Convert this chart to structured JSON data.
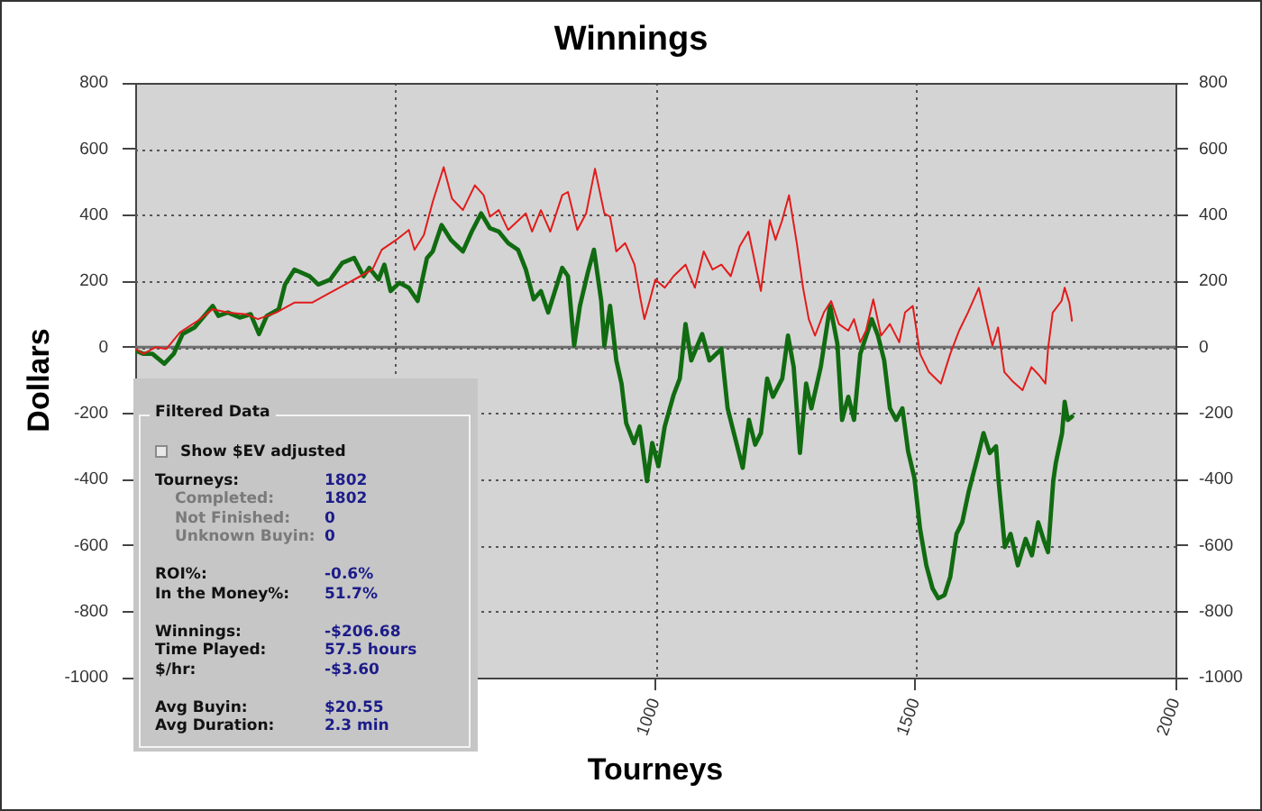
{
  "chart_data": [
    {
      "type": "line",
      "title": "Winnings",
      "xlabel": "Tourneys",
      "ylabel": "Dollars",
      "xlim": [
        0,
        2000
      ],
      "xticks": [
        {
          "value": 500,
          "label": null
        },
        1000,
        1500,
        2000
      ],
      "ylim": [
        -1000,
        800
      ],
      "yticks": [
        -1000,
        -800,
        -600,
        -400,
        -200,
        0,
        200,
        400,
        600,
        800
      ],
      "y2lim": [
        -1000,
        800
      ],
      "y2ticks": [
        -1000,
        -800,
        -600,
        -400,
        -200,
        0,
        200,
        400,
        600,
        800
      ],
      "grid": true,
      "legend": false,
      "ref_lines": [
        {
          "axis": "y",
          "value": 0,
          "color": "#6e6e6e"
        }
      ],
      "series": [
        {
          "color": "#e31b1b",
          "x": [
            0,
            16,
            39,
            60,
            86,
            120,
            149,
            178,
            213,
            236,
            271,
            306,
            340,
            369,
            404,
            433,
            456,
            474,
            502,
            526,
            537,
            555,
            572,
            593,
            609,
            630,
            653,
            670,
            682,
            699,
            717,
            734,
            751,
            763,
            780,
            798,
            821,
            832,
            850,
            867,
            884,
            902,
            913,
            925,
            942,
            960,
            971,
            979,
            989,
            1000,
            1018,
            1035,
            1058,
            1076,
            1093,
            1110,
            1127,
            1145,
            1162,
            1179,
            1203,
            1220,
            1231,
            1243,
            1257,
            1272,
            1284,
            1295,
            1307,
            1324,
            1338,
            1353,
            1371,
            1382,
            1394,
            1405,
            1419,
            1434,
            1451,
            1469,
            1480,
            1495,
            1509,
            1526,
            1549,
            1567,
            1584,
            1601,
            1622,
            1636,
            1648,
            1659,
            1671,
            1688,
            1706,
            1723,
            1738,
            1750,
            1755,
            1764,
            1781,
            1787,
            1796,
            1801
          ],
          "values": [
            -5,
            -20,
            0,
            -5,
            45,
            80,
            115,
            105,
            100,
            85,
            105,
            135,
            135,
            160,
            190,
            215,
            235,
            295,
            325,
            355,
            295,
            340,
            440,
            545,
            450,
            415,
            490,
            460,
            395,
            415,
            355,
            380,
            405,
            350,
            415,
            350,
            460,
            470,
            355,
            405,
            540,
            405,
            395,
            290,
            315,
            250,
            150,
            85,
            140,
            205,
            180,
            215,
            250,
            180,
            290,
            235,
            250,
            215,
            305,
            350,
            170,
            385,
            325,
            380,
            460,
            315,
            180,
            85,
            35,
            105,
            140,
            70,
            50,
            85,
            15,
            50,
            145,
            35,
            70,
            15,
            105,
            125,
            -20,
            -75,
            -110,
            -20,
            50,
            105,
            180,
            85,
            5,
            60,
            -75,
            -105,
            -130,
            -60,
            -85,
            -110,
            -5,
            105,
            140,
            180,
            135,
            80
          ]
        },
        {
          "color": "#116b11",
          "x": [
            0,
            16,
            33,
            56,
            74,
            91,
            114,
            149,
            160,
            178,
            201,
            222,
            238,
            253,
            276,
            288,
            306,
            335,
            352,
            375,
            398,
            421,
            439,
            450,
            468,
            479,
            491,
            508,
            526,
            543,
            561,
            572,
            589,
            607,
            630,
            647,
            665,
            682,
            699,
            717,
            736,
            751,
            766,
            780,
            794,
            809,
            821,
            832,
            844,
            855,
            870,
            882,
            896,
            902,
            913,
            925,
            935,
            944,
            959,
            970,
            984,
            994,
            1006,
            1018,
            1035,
            1047,
            1058,
            1069,
            1090,
            1104,
            1127,
            1139,
            1151,
            1168,
            1180,
            1192,
            1203,
            1215,
            1226,
            1244,
            1255,
            1266,
            1278,
            1290,
            1300,
            1318,
            1336,
            1350,
            1359,
            1371,
            1382,
            1394,
            1416,
            1428,
            1440,
            1451,
            1463,
            1475,
            1486,
            1498,
            1509,
            1521,
            1533,
            1544,
            1556,
            1567,
            1579,
            1590,
            1602,
            1620,
            1631,
            1643,
            1655,
            1660,
            1672,
            1683,
            1697,
            1712,
            1724,
            1736,
            1747,
            1755,
            1765,
            1770,
            1782,
            1787,
            1793,
            1801
          ],
          "values": [
            -10,
            -20,
            -20,
            -50,
            -20,
            40,
            60,
            125,
            95,
            105,
            90,
            100,
            40,
            95,
            115,
            190,
            235,
            215,
            190,
            205,
            255,
            270,
            215,
            240,
            205,
            250,
            170,
            195,
            180,
            140,
            270,
            290,
            370,
            325,
            290,
            350,
            405,
            360,
            350,
            315,
            295,
            235,
            145,
            170,
            105,
            180,
            240,
            215,
            5,
            125,
            225,
            295,
            140,
            5,
            125,
            -40,
            -110,
            -230,
            -290,
            -240,
            -405,
            -290,
            -360,
            -240,
            -145,
            -95,
            70,
            -40,
            40,
            -40,
            -5,
            -185,
            -260,
            -365,
            -220,
            -295,
            -260,
            -95,
            -150,
            -95,
            35,
            -60,
            -320,
            -110,
            -185,
            -60,
            125,
            10,
            -220,
            -150,
            -220,
            -20,
            85,
            35,
            -40,
            -185,
            -220,
            -185,
            -315,
            -395,
            -550,
            -660,
            -730,
            -760,
            -750,
            -695,
            -565,
            -530,
            -440,
            -330,
            -260,
            -320,
            -300,
            -405,
            -605,
            -565,
            -660,
            -580,
            -630,
            -530,
            -585,
            -620,
            -405,
            -350,
            -260,
            -165,
            -220,
            -210
          ]
        }
      ]
    },
    {
      "type": "other",
      "title": "Filtered Data",
      "annotations": [
        "Show $EV adjusted",
        "Tourneys:",
        "1802",
        "Completed:",
        "1802",
        "Not Finished:",
        "0",
        "Unknown Buyin:",
        "0",
        "ROI%:",
        "-0.6%",
        "In the Money%:",
        "51.7%",
        "Winnings:",
        "-$206.68",
        "Time Played:",
        "57.5 hours",
        "$/hr:",
        "-$3.60",
        "Avg Buyin:",
        "$20.55",
        "Avg Duration:",
        "2.3 min"
      ]
    }
  ]
}
